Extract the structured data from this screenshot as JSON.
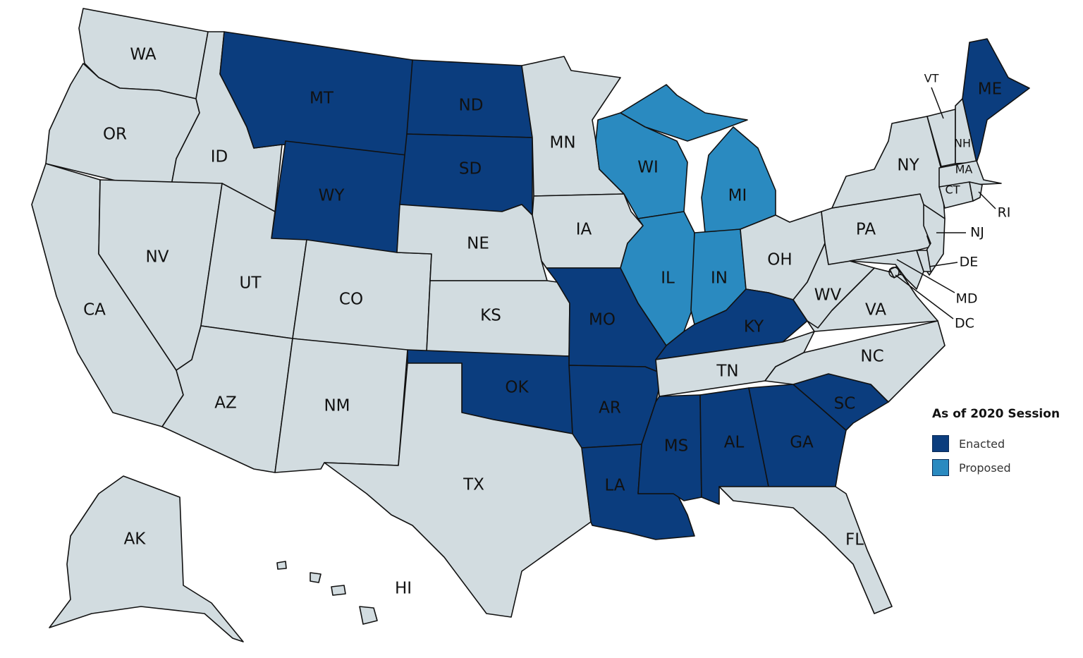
{
  "legend": {
    "title": "As of 2020 Session",
    "items": [
      {
        "label": "Enacted",
        "color": "#0b3d7e"
      },
      {
        "label": "Proposed",
        "color": "#2a8ac0"
      }
    ]
  },
  "default_color": "#d2dce0",
  "states": [
    {
      "code": "WA",
      "status": "none"
    },
    {
      "code": "OR",
      "status": "none"
    },
    {
      "code": "CA",
      "status": "none"
    },
    {
      "code": "ID",
      "status": "none"
    },
    {
      "code": "NV",
      "status": "none"
    },
    {
      "code": "MT",
      "status": "enacted"
    },
    {
      "code": "WY",
      "status": "enacted"
    },
    {
      "code": "UT",
      "status": "none"
    },
    {
      "code": "AZ",
      "status": "none"
    },
    {
      "code": "CO",
      "status": "none"
    },
    {
      "code": "NM",
      "status": "none"
    },
    {
      "code": "ND",
      "status": "enacted"
    },
    {
      "code": "SD",
      "status": "enacted"
    },
    {
      "code": "NE",
      "status": "none"
    },
    {
      "code": "KS",
      "status": "none"
    },
    {
      "code": "OK",
      "status": "enacted"
    },
    {
      "code": "TX",
      "status": "none"
    },
    {
      "code": "MN",
      "status": "none"
    },
    {
      "code": "IA",
      "status": "none"
    },
    {
      "code": "MO",
      "status": "enacted"
    },
    {
      "code": "AR",
      "status": "enacted"
    },
    {
      "code": "LA",
      "status": "enacted"
    },
    {
      "code": "WI",
      "status": "proposed"
    },
    {
      "code": "IL",
      "status": "proposed"
    },
    {
      "code": "MI",
      "status": "proposed"
    },
    {
      "code": "IN",
      "status": "proposed"
    },
    {
      "code": "OH",
      "status": "none"
    },
    {
      "code": "KY",
      "status": "enacted"
    },
    {
      "code": "TN",
      "status": "none"
    },
    {
      "code": "MS",
      "status": "enacted"
    },
    {
      "code": "AL",
      "status": "enacted"
    },
    {
      "code": "GA",
      "status": "enacted"
    },
    {
      "code": "SC",
      "status": "enacted"
    },
    {
      "code": "FL",
      "status": "none"
    },
    {
      "code": "NC",
      "status": "none"
    },
    {
      "code": "VA",
      "status": "none"
    },
    {
      "code": "WV",
      "status": "none"
    },
    {
      "code": "PA",
      "status": "none"
    },
    {
      "code": "NY",
      "status": "none"
    },
    {
      "code": "VT",
      "status": "none"
    },
    {
      "code": "NH",
      "status": "none"
    },
    {
      "code": "ME",
      "status": "enacted"
    },
    {
      "code": "MA",
      "status": "none"
    },
    {
      "code": "CT",
      "status": "none"
    },
    {
      "code": "RI",
      "status": "none"
    },
    {
      "code": "NJ",
      "status": "none"
    },
    {
      "code": "DE",
      "status": "none"
    },
    {
      "code": "MD",
      "status": "none"
    },
    {
      "code": "DC",
      "status": "none"
    },
    {
      "code": "AK",
      "status": "none"
    },
    {
      "code": "HI",
      "status": "none"
    }
  ]
}
